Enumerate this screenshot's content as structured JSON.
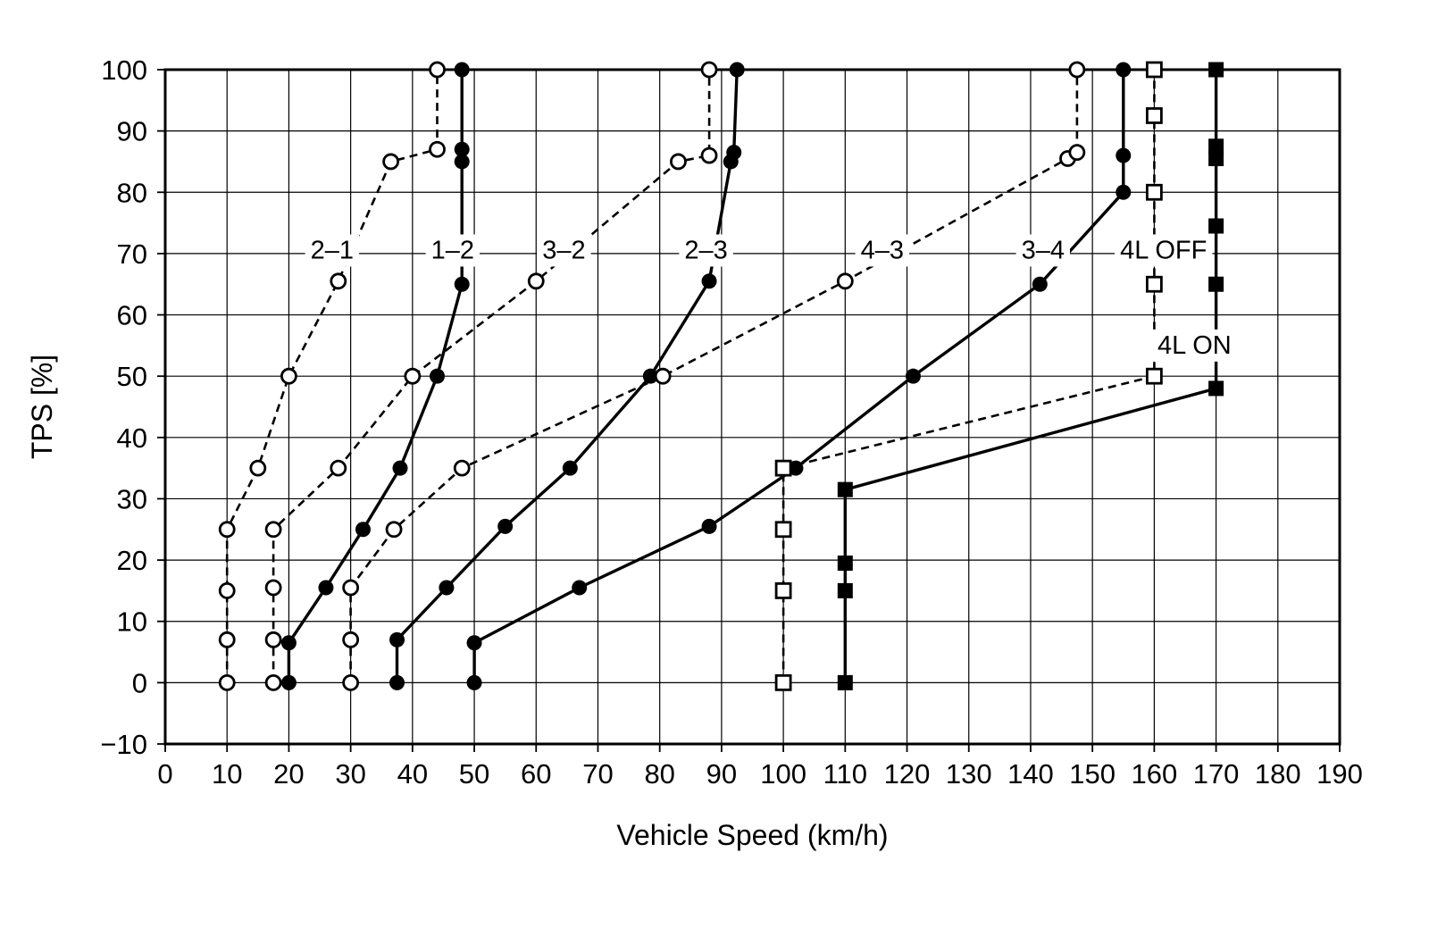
{
  "page": {
    "background": "#ffffff"
  },
  "chart_data": {
    "type": "line",
    "title": "",
    "xlabel": "Vehicle Speed (km/h)",
    "ylabel": "TPS [%]",
    "xlim": [
      0,
      190
    ],
    "xtick_step": 10,
    "ylim": [
      -10,
      100
    ],
    "ytick_step": 10,
    "grid": true,
    "legend_position": "inline-labels",
    "colors": {
      "stroke": "#000000",
      "grid": "#000000",
      "background": "#ffffff"
    },
    "series": [
      {
        "name": "2–1",
        "line": "dashed",
        "marker": "open-circle",
        "label_pos": [
          27,
          70.5
        ],
        "points": [
          [
            10,
            0
          ],
          [
            10,
            7
          ],
          [
            10,
            15
          ],
          [
            10,
            25
          ],
          [
            15,
            35
          ],
          [
            20,
            50
          ],
          [
            28,
            65.5
          ],
          [
            36.5,
            85
          ],
          [
            44,
            87
          ],
          [
            44,
            100
          ]
        ]
      },
      {
        "name": "1–2",
        "line": "solid",
        "marker": "filled-circle",
        "label_pos": [
          46.5,
          70.5
        ],
        "points": [
          [
            20,
            0
          ],
          [
            20,
            6.5
          ],
          [
            26,
            15.5
          ],
          [
            32,
            25
          ],
          [
            38,
            35
          ],
          [
            44,
            50
          ],
          [
            48,
            65
          ],
          [
            48,
            85
          ],
          [
            48,
            87
          ],
          [
            48,
            100
          ]
        ]
      },
      {
        "name": "3–2",
        "line": "dashed",
        "marker": "open-circle",
        "label_pos": [
          64.5,
          70.5
        ],
        "points": [
          [
            17.5,
            0
          ],
          [
            17.5,
            7
          ],
          [
            17.5,
            15.5
          ],
          [
            17.5,
            25
          ],
          [
            28,
            35
          ],
          [
            40,
            50
          ],
          [
            60,
            65.5
          ],
          [
            83,
            85
          ],
          [
            88,
            86
          ],
          [
            88,
            100
          ]
        ]
      },
      {
        "name": "2–3",
        "line": "solid",
        "marker": "filled-circle",
        "label_pos": [
          87.5,
          70.5
        ],
        "points": [
          [
            37.5,
            0
          ],
          [
            37.5,
            7
          ],
          [
            45.5,
            15.5
          ],
          [
            55,
            25.5
          ],
          [
            65.5,
            35
          ],
          [
            78.5,
            50
          ],
          [
            88,
            65.5
          ],
          [
            91.5,
            85
          ],
          [
            92,
            86.5
          ],
          [
            92.5,
            100
          ]
        ]
      },
      {
        "name": "4–3",
        "line": "dashed",
        "marker": "open-circle",
        "label_pos": [
          116,
          70.5
        ],
        "points": [
          [
            30,
            0
          ],
          [
            30,
            7
          ],
          [
            30,
            15.5
          ],
          [
            37,
            25
          ],
          [
            48,
            35
          ],
          [
            80.5,
            50
          ],
          [
            110,
            65.5
          ],
          [
            146,
            85.5
          ],
          [
            147.5,
            86.5
          ],
          [
            147.5,
            100
          ]
        ]
      },
      {
        "name": "3–4",
        "line": "solid",
        "marker": "filled-circle",
        "label_pos": [
          142,
          70.5
        ],
        "points": [
          [
            50,
            0
          ],
          [
            50,
            6.5
          ],
          [
            67,
            15.5
          ],
          [
            88,
            25.5
          ],
          [
            102,
            35
          ],
          [
            121,
            50
          ],
          [
            141.5,
            65
          ],
          [
            155,
            80
          ],
          [
            155,
            86
          ],
          [
            155,
            100
          ]
        ]
      },
      {
        "name": "4L OFF",
        "line": "dashed",
        "marker": "open-square",
        "label_pos": [
          161.5,
          70.5
        ],
        "points": [
          [
            100,
            0
          ],
          [
            100,
            15
          ],
          [
            100,
            25
          ],
          [
            100,
            35
          ],
          [
            160,
            50
          ],
          [
            160,
            65
          ],
          [
            160,
            80
          ],
          [
            160,
            92.5
          ],
          [
            160,
            100
          ]
        ]
      },
      {
        "name": "4L ON",
        "line": "solid",
        "marker": "filled-square",
        "label_pos": [
          166.5,
          55
        ],
        "points": [
          [
            110,
            0
          ],
          [
            110,
            15
          ],
          [
            110,
            19.5
          ],
          [
            110,
            31.5
          ],
          [
            170,
            48
          ],
          [
            170,
            65
          ],
          [
            170,
            74.5
          ],
          [
            170,
            85.5
          ],
          [
            170,
            87.5
          ],
          [
            170,
            100
          ]
        ]
      }
    ]
  }
}
